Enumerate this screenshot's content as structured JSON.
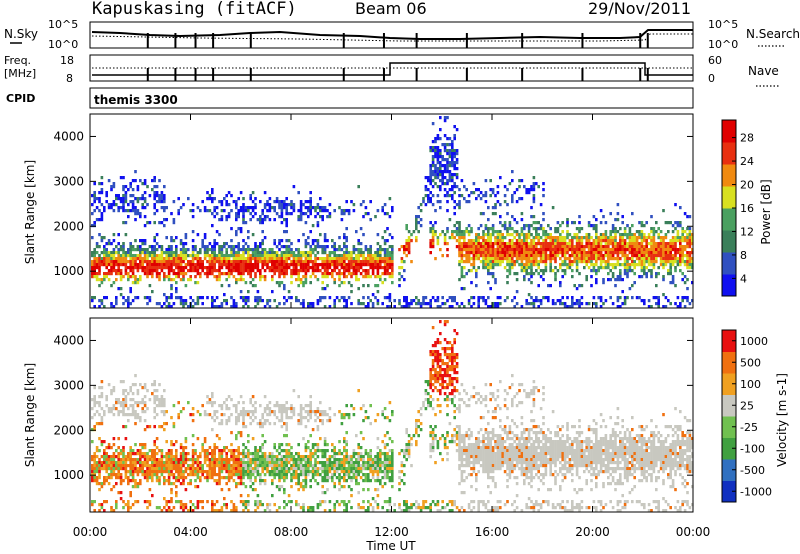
{
  "header": {
    "title": "Kapuskasing (fitACF)",
    "beam": "Beam 06",
    "date": "29/Nov/2011"
  },
  "panels": {
    "nsky": {
      "label": "N.Sky",
      "ytick_top": "10^5",
      "ytick_bottom": "10^0",
      "right_label": "N.Search",
      "right_top": "10^5",
      "right_bottom": "10^0"
    },
    "freq": {
      "label_line1": "Freq.",
      "label_line2": "[MHz]",
      "ytick_top": "18",
      "ytick_bottom": "8",
      "right_label": "Nave",
      "right_top": "60",
      "right_bottom": "0"
    },
    "cpid": {
      "label": "CPID",
      "program": "themis 3300"
    }
  },
  "chart_data": [
    {
      "type": "heatmap",
      "name": "power",
      "ylabel": "Slant Range [km]",
      "yticks": [
        "4000",
        "3000",
        "2000",
        "1000"
      ],
      "ylim": [
        180,
        4500
      ],
      "colorbar": {
        "label": "Power [dB]",
        "ticks": [
          "28",
          "24",
          "20",
          "16",
          "12",
          "8",
          "4"
        ],
        "range": [
          0,
          30
        ]
      }
    },
    {
      "type": "heatmap",
      "name": "velocity",
      "ylabel": "Slant Range [km]",
      "yticks": [
        "4000",
        "3000",
        "2000",
        "1000"
      ],
      "ylim": [
        180,
        4500
      ],
      "colorbar": {
        "label": "Velocity [m s-1]",
        "ticks": [
          "1000",
          "500",
          "100",
          "25",
          "-25",
          "-100",
          "-500",
          "-1000"
        ]
      }
    }
  ],
  "xaxis": {
    "label": "Time UT",
    "ticks": [
      "00:00",
      "04:00",
      "08:00",
      "12:00",
      "16:00",
      "20:00",
      "00:00"
    ],
    "range_hours": [
      0,
      24
    ]
  },
  "colors": {
    "power_scale": [
      "#1010f0",
      "#3050c0",
      "#3a7f5a",
      "#4aa060",
      "#d8e020",
      "#f08a10",
      "#e83010",
      "#e00000"
    ],
    "velocity_scale": [
      "#1030c0",
      "#3070c0",
      "#40a040",
      "#70c050",
      "#c8c8c0",
      "#f0a020",
      "#f07010",
      "#e81010"
    ]
  }
}
